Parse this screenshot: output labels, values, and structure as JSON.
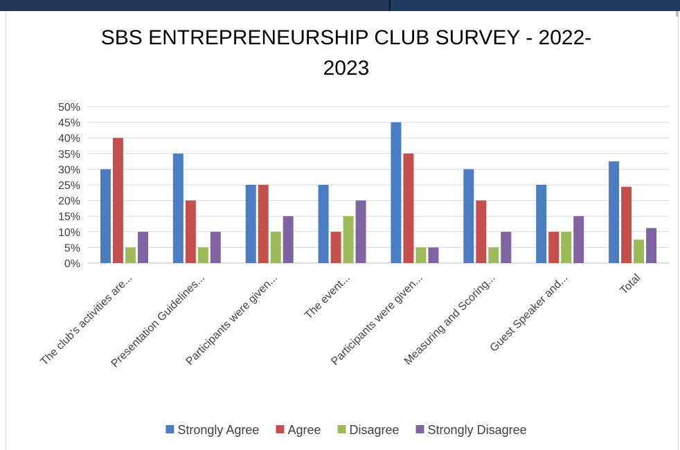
{
  "chart_data": {
    "type": "bar",
    "title_line1": "SBS ENTREPRENEURSHIP CLUB SURVEY -  2022-",
    "title_line2": "2023",
    "xlabel": "",
    "ylabel": "",
    "ylim": [
      0,
      0.5
    ],
    "y_ticks": [
      "0%",
      "5%",
      "10%",
      "15%",
      "20%",
      "25%",
      "30%",
      "35%",
      "40%",
      "45%",
      "50%"
    ],
    "grid": true,
    "legend_position": "bottom",
    "categories": [
      "The club's activities are...",
      "Presentation Guidelines...",
      "Participants were given...",
      "The event...",
      "Participants were given...",
      "Measuring and Scoring...",
      "Guest Speaker and...",
      "Total"
    ],
    "series": [
      {
        "name": "Strongly Agree",
        "color": "#4a7dc1",
        "values": [
          0.3,
          0.35,
          0.25,
          0.25,
          0.45,
          0.3,
          0.25,
          0.325
        ]
      },
      {
        "name": "Agree",
        "color": "#c44f4c",
        "values": [
          0.4,
          0.2,
          0.25,
          0.1,
          0.35,
          0.2,
          0.1,
          0.244
        ]
      },
      {
        "name": "Disagree",
        "color": "#9bbb59",
        "values": [
          0.05,
          0.05,
          0.1,
          0.15,
          0.05,
          0.05,
          0.1,
          0.075
        ]
      },
      {
        "name": "Strongly Disagree",
        "color": "#8064a2",
        "values": [
          0.1,
          0.1,
          0.15,
          0.2,
          0.05,
          0.1,
          0.15,
          0.112
        ]
      }
    ]
  }
}
